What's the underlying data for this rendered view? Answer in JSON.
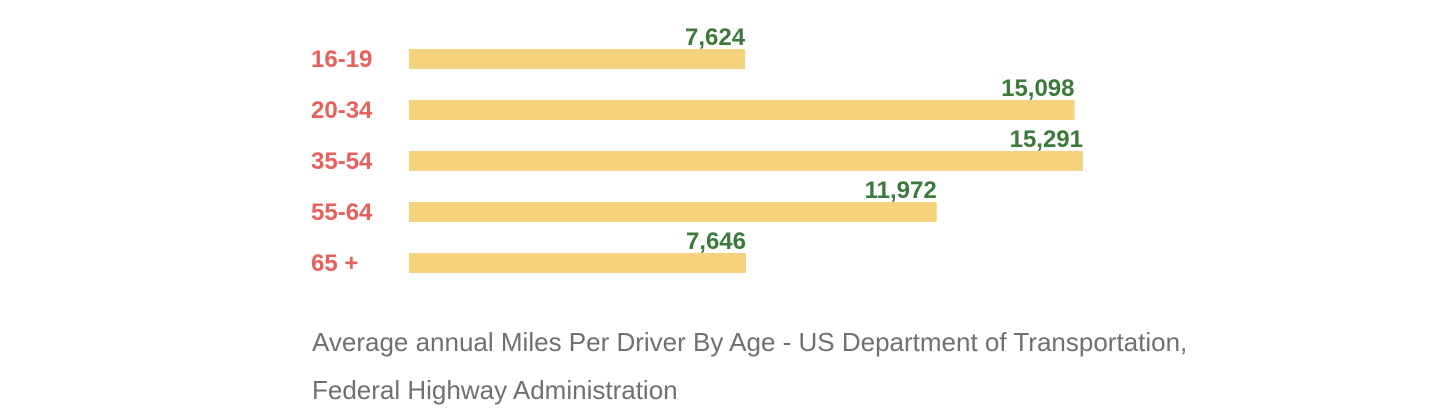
{
  "chart_data": {
    "type": "bar",
    "orientation": "horizontal",
    "categories": [
      "16-19",
      "20-34",
      "35-54",
      "55-64",
      "65 +"
    ],
    "values": [
      7624,
      15098,
      15291,
      11972,
      7646
    ],
    "value_labels": [
      "7,624",
      "15,098",
      "15,291",
      "11,972",
      "7,646"
    ],
    "xlim": [
      0,
      15291
    ],
    "grid": false,
    "legend": "none",
    "colors": {
      "bar": "#f5d37d",
      "category_label": "#e8605a",
      "value_label": "#3b7a3b",
      "caption": "#707070"
    }
  },
  "caption": {
    "line1": "Average annual Miles Per Driver By Age - US Department of Transportation,",
    "line2": "Federal Highway Administration"
  }
}
